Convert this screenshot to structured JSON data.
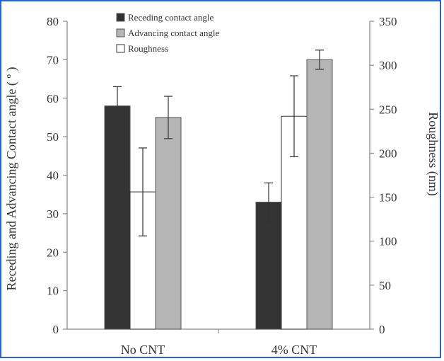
{
  "chart_data": {
    "type": "bar",
    "categories": [
      "No CNT",
      "4% CNT"
    ],
    "series": [
      {
        "name": "Receding contact angle",
        "axis": "left",
        "color": "#333333",
        "values": [
          58,
          33
        ],
        "errors": [
          5,
          5
        ]
      },
      {
        "name": "Roughness",
        "axis": "right",
        "color": "#ffffff",
        "values": [
          156,
          242
        ],
        "errors": [
          50,
          46
        ]
      },
      {
        "name": "Advancing contact angle",
        "axis": "left",
        "color": "#b5b5b5",
        "values": [
          55,
          70
        ],
        "errors": [
          5.5,
          2.5
        ]
      }
    ],
    "legend_order": [
      "Receding contact angle",
      "Advancing contact angle",
      "Roughness"
    ],
    "ylabel": "Receding and Advancing Contact angle ( º )",
    "ylim": [
      0,
      80
    ],
    "yticks": [
      0,
      10,
      20,
      30,
      40,
      50,
      60,
      70,
      80
    ],
    "y2label": "Roughness (nm)",
    "y2lim": [
      0,
      350
    ],
    "y2ticks": [
      0,
      50,
      100,
      150,
      200,
      250,
      300,
      350
    ],
    "grid": false,
    "legend_position": "top-left"
  }
}
